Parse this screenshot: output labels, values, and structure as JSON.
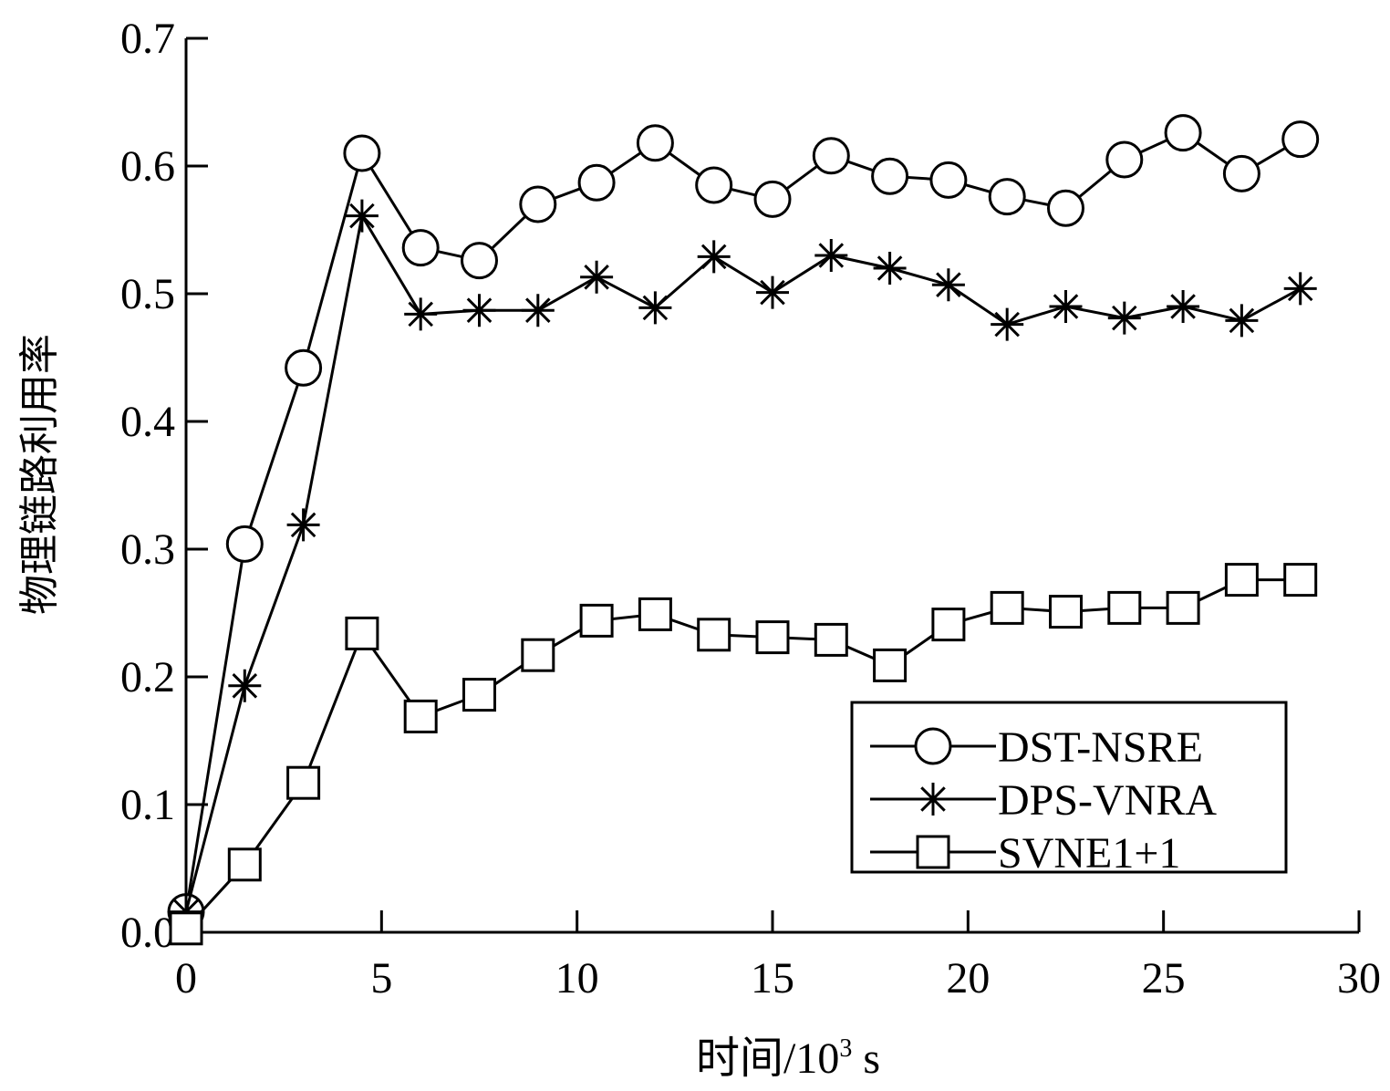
{
  "chart_data": {
    "type": "line",
    "title": "",
    "xlabel": "时间/10",
    "xlabel_sup": "3",
    "xlabel_unit": " s",
    "ylabel": "物理链路利用率",
    "xlim": [
      0,
      30
    ],
    "ylim": [
      0,
      0.7
    ],
    "xticks": [
      "0",
      "5",
      "10",
      "15",
      "20",
      "25",
      "30"
    ],
    "yticks": [
      "0.0",
      "0.1",
      "0.2",
      "0.3",
      "0.4",
      "0.5",
      "0.6",
      "0.7"
    ],
    "grid": false,
    "legend_position": "bottom-right",
    "x": [
      0,
      1.5,
      3,
      4.5,
      6,
      7.5,
      9,
      10.5,
      12,
      13.5,
      15,
      16.5,
      18,
      19.5,
      21,
      22.5,
      24,
      25.5,
      27,
      28.5
    ],
    "series": [
      {
        "name": "DST-NSRE",
        "marker": "circle",
        "values": [
          0.016,
          0.304,
          0.442,
          0.61,
          0.536,
          0.526,
          0.57,
          0.587,
          0.618,
          0.585,
          0.574,
          0.608,
          0.592,
          0.589,
          0.576,
          0.567,
          0.605,
          0.626,
          0.594,
          0.621
        ]
      },
      {
        "name": "DPS-VNRA",
        "marker": "asterisk",
        "values": [
          0.016,
          0.193,
          0.319,
          0.561,
          0.484,
          0.487,
          0.487,
          0.513,
          0.489,
          0.529,
          0.501,
          0.53,
          0.52,
          0.507,
          0.476,
          0.49,
          0.481,
          0.49,
          0.479,
          0.504
        ]
      },
      {
        "name": "SVNE1+1",
        "marker": "square",
        "values": [
          0.003,
          0.053,
          0.117,
          0.234,
          0.169,
          0.186,
          0.217,
          0.244,
          0.249,
          0.233,
          0.231,
          0.229,
          0.209,
          0.241,
          0.254,
          0.251,
          0.254,
          0.254,
          0.276,
          0.276
        ]
      }
    ]
  }
}
